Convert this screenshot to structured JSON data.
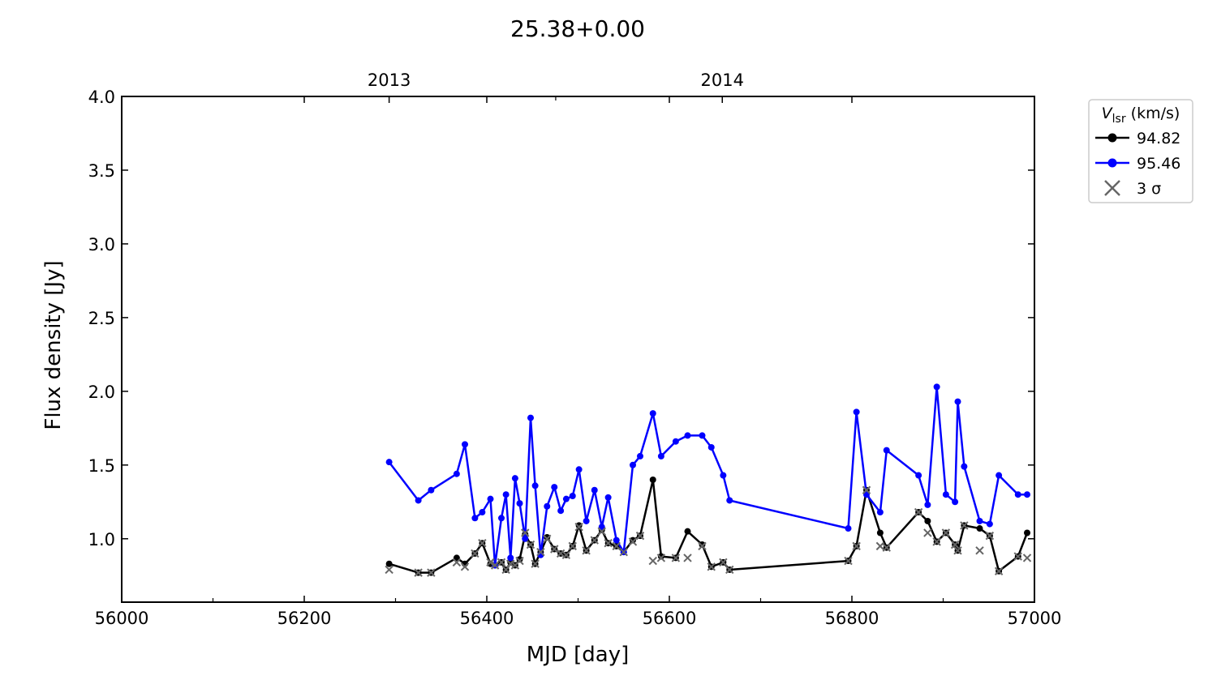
{
  "chart_data": {
    "type": "line",
    "title": "25.38+0.00",
    "xlabel": "MJD [day]",
    "ylabel": "Flux density [Jy]",
    "xlim": [
      56000,
      57000
    ],
    "ylim": [
      0.57,
      4.0
    ],
    "xticks": [
      "56000",
      "56200",
      "56400",
      "56600",
      "56800",
      "57000"
    ],
    "yticks": [
      "1.0",
      "1.5",
      "2.0",
      "2.5",
      "3.0",
      "3.5",
      "4.0"
    ],
    "top_axis": {
      "ticks": [
        {
          "x": 56293,
          "label": "2013"
        },
        {
          "x": 56658,
          "label": "2014"
        }
      ]
    },
    "grid": false,
    "legend": {
      "title_symbol": "V",
      "title_sub": "lsr",
      "title_unit": " (km/s)",
      "placement": "outside-right",
      "sigma_label": "3 σ"
    },
    "series": [
      {
        "name": "94.82",
        "color": "#000000",
        "x": [
          56293,
          56325,
          56339,
          56367,
          56376,
          56387,
          56395,
          56404,
          56409,
          56416,
          56421,
          56426,
          56431,
          56436,
          56442,
          56448,
          56453,
          56459,
          56466,
          56474,
          56481,
          56487,
          56494,
          56501,
          56509,
          56518,
          56526,
          56533,
          56542,
          56550,
          56560,
          56568,
          56582,
          56591,
          56607,
          56620,
          56636,
          56646,
          56659,
          56666,
          56796,
          56805,
          56816,
          56831,
          56838,
          56873,
          56883,
          56893,
          56903,
          56913,
          56916,
          56923,
          56940,
          56951,
          56961,
          56982,
          56992
        ],
        "values": [
          0.83,
          0.77,
          0.77,
          0.87,
          0.83,
          0.9,
          0.97,
          0.83,
          0.82,
          0.84,
          0.79,
          0.84,
          0.82,
          0.86,
          1.03,
          0.96,
          0.83,
          0.91,
          1.01,
          0.93,
          0.9,
          0.89,
          0.95,
          1.09,
          0.92,
          0.99,
          1.06,
          0.97,
          0.95,
          0.91,
          0.99,
          1.02,
          1.4,
          0.88,
          0.87,
          1.05,
          0.96,
          0.81,
          0.84,
          0.79,
          0.85,
          0.95,
          1.33,
          1.04,
          0.94,
          1.18,
          1.12,
          0.98,
          1.04,
          0.96,
          0.92,
          1.09,
          1.07,
          1.02,
          0.78,
          0.88,
          1.04
        ]
      },
      {
        "name": "95.46",
        "color": "#0000ff",
        "x": [
          56293,
          56325,
          56339,
          56367,
          56376,
          56387,
          56395,
          56404,
          56409,
          56416,
          56421,
          56426,
          56431,
          56436,
          56442,
          56448,
          56453,
          56459,
          56466,
          56474,
          56481,
          56487,
          56494,
          56501,
          56509,
          56518,
          56526,
          56533,
          56542,
          56550,
          56560,
          56568,
          56582,
          56591,
          56607,
          56620,
          56636,
          56646,
          56659,
          56666,
          56796,
          56805,
          56816,
          56831,
          56838,
          56873,
          56883,
          56893,
          56903,
          56913,
          56916,
          56923,
          56940,
          56951,
          56961,
          56982,
          56992
        ],
        "values": [
          1.52,
          1.26,
          1.33,
          1.44,
          1.64,
          1.14,
          1.18,
          1.27,
          0.82,
          1.14,
          1.3,
          0.87,
          1.41,
          1.24,
          1.0,
          1.82,
          1.36,
          0.89,
          1.22,
          1.35,
          1.19,
          1.27,
          1.29,
          1.47,
          1.12,
          1.33,
          1.08,
          1.28,
          0.99,
          0.91,
          1.5,
          1.56,
          1.85,
          1.56,
          1.66,
          1.7,
          1.7,
          1.62,
          1.43,
          1.26,
          1.07,
          1.86,
          1.3,
          1.18,
          1.6,
          1.43,
          1.23,
          2.03,
          1.3,
          1.25,
          1.93,
          1.49,
          1.12,
          1.1,
          1.43,
          1.3,
          1.3
        ]
      }
    ],
    "sigma_markers": {
      "color": "#666666",
      "x": [
        56293,
        56325,
        56339,
        56367,
        56376,
        56387,
        56395,
        56404,
        56409,
        56416,
        56421,
        56426,
        56431,
        56436,
        56442,
        56448,
        56453,
        56459,
        56466,
        56474,
        56481,
        56487,
        56494,
        56501,
        56509,
        56518,
        56526,
        56533,
        56542,
        56550,
        56560,
        56568,
        56582,
        56591,
        56607,
        56620,
        56636,
        56646,
        56659,
        56666,
        56796,
        56805,
        56816,
        56831,
        56838,
        56873,
        56883,
        56893,
        56903,
        56913,
        56916,
        56923,
        56940,
        56951,
        56961,
        56982,
        56992
      ],
      "values": [
        0.79,
        0.77,
        0.77,
        0.84,
        0.81,
        0.9,
        0.97,
        0.84,
        0.82,
        0.84,
        0.79,
        0.83,
        0.82,
        0.85,
        1.04,
        0.96,
        0.83,
        0.91,
        1.0,
        0.93,
        0.9,
        0.89,
        0.95,
        1.08,
        0.92,
        0.99,
        1.05,
        0.97,
        0.95,
        0.91,
        0.98,
        1.02,
        0.85,
        0.87,
        0.87,
        0.87,
        0.95,
        0.81,
        0.84,
        0.79,
        0.85,
        0.95,
        1.33,
        0.95,
        0.94,
        1.18,
        1.04,
        0.98,
        1.04,
        0.96,
        0.92,
        1.09,
        0.92,
        1.02,
        0.78,
        0.88,
        0.87
      ]
    }
  }
}
